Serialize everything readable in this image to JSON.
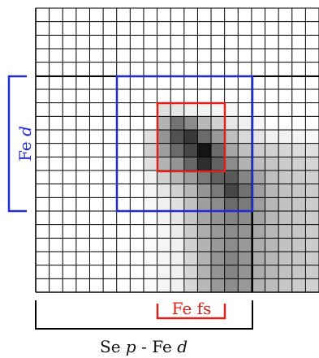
{
  "diagram": {
    "grid": {
      "cols": 21,
      "rows": 21
    },
    "cells": [
      [
        0,
        0,
        0,
        0,
        0,
        0,
        0,
        0,
        0,
        0,
        0,
        0,
        0,
        0,
        0,
        0,
        0,
        0,
        0,
        0,
        0
      ],
      [
        0,
        0,
        0,
        0,
        0,
        0,
        0,
        0,
        0,
        0,
        0,
        0,
        0,
        0,
        0,
        0,
        0,
        0,
        0,
        0,
        0
      ],
      [
        0,
        0,
        0,
        0,
        0,
        0,
        0,
        0,
        0,
        0,
        0,
        0,
        0,
        0,
        0,
        0,
        0,
        0,
        0,
        0,
        0
      ],
      [
        0,
        0,
        0,
        0,
        0,
        0,
        0,
        0,
        0,
        0,
        0,
        0,
        0,
        0,
        0,
        0,
        0,
        0,
        0,
        0,
        0
      ],
      [
        0,
        0,
        0,
        0,
        0,
        0,
        0,
        0,
        0,
        0,
        0,
        0,
        0,
        0,
        0,
        0,
        0,
        0,
        0,
        0,
        0
      ],
      [
        0,
        0,
        0,
        0,
        0,
        0,
        0,
        0,
        0,
        0,
        0,
        0,
        0,
        0,
        0,
        0,
        0,
        0,
        0,
        0,
        0
      ],
      [
        0,
        0,
        0,
        0,
        0,
        0,
        0,
        0,
        0,
        0,
        0,
        0,
        0,
        0,
        0,
        0,
        0,
        0,
        0,
        0,
        0
      ],
      [
        0,
        0,
        0,
        0,
        0,
        0,
        0,
        0,
        0,
        0.12,
        0.1,
        0.06,
        0.05,
        0.04,
        0.03,
        0,
        0,
        0,
        0,
        0,
        0
      ],
      [
        0,
        0,
        0,
        0,
        0,
        0,
        0,
        0,
        0,
        0.3,
        0.55,
        0.45,
        0.28,
        0.18,
        0.1,
        0.06,
        0.04,
        0,
        0,
        0,
        0
      ],
      [
        0,
        0,
        0,
        0,
        0,
        0,
        0,
        0,
        0.12,
        0.42,
        0.68,
        0.78,
        0.58,
        0.4,
        0.25,
        0.15,
        0.1,
        0.06,
        0.05,
        0.04,
        0.03
      ],
      [
        0,
        0,
        0,
        0,
        0,
        0,
        0,
        0,
        0.18,
        0.38,
        0.58,
        0.72,
        0.92,
        0.58,
        0.35,
        0.25,
        0.2,
        0.18,
        0.16,
        0.14,
        0.12
      ],
      [
        0,
        0,
        0,
        0,
        0,
        0,
        0,
        0,
        0.12,
        0.3,
        0.42,
        0.6,
        0.82,
        0.62,
        0.45,
        0.3,
        0.25,
        0.22,
        0.2,
        0.18,
        0.16
      ],
      [
        0,
        0,
        0,
        0,
        0,
        0,
        0,
        0,
        0.06,
        0.18,
        0.28,
        0.38,
        0.52,
        0.62,
        0.65,
        0.48,
        0.35,
        0.25,
        0.22,
        0.2,
        0.18
      ],
      [
        0,
        0,
        0,
        0,
        0,
        0,
        0,
        0,
        0.04,
        0.1,
        0.18,
        0.28,
        0.42,
        0.52,
        0.72,
        0.56,
        0.38,
        0.28,
        0.24,
        0.22,
        0.2
      ],
      [
        0,
        0,
        0,
        0,
        0,
        0,
        0,
        0,
        0.03,
        0.06,
        0.12,
        0.24,
        0.38,
        0.45,
        0.58,
        0.52,
        0.38,
        0.28,
        0.24,
        0.22,
        0.2
      ],
      [
        0,
        0,
        0,
        0,
        0,
        0,
        0,
        0,
        0.02,
        0.05,
        0.1,
        0.22,
        0.35,
        0.42,
        0.48,
        0.45,
        0.36,
        0.28,
        0.24,
        0.22,
        0.2
      ],
      [
        0,
        0,
        0,
        0,
        0,
        0,
        0,
        0,
        0.02,
        0.04,
        0.08,
        0.2,
        0.32,
        0.4,
        0.45,
        0.42,
        0.34,
        0.28,
        0.24,
        0.22,
        0.2
      ],
      [
        0,
        0,
        0,
        0,
        0,
        0,
        0,
        0,
        0.02,
        0.04,
        0.06,
        0.18,
        0.3,
        0.4,
        0.45,
        0.4,
        0.32,
        0.28,
        0.24,
        0.22,
        0.2
      ],
      [
        0,
        0,
        0,
        0,
        0,
        0,
        0,
        0,
        0.02,
        0.04,
        0.06,
        0.16,
        0.3,
        0.42,
        0.48,
        0.42,
        0.32,
        0.28,
        0.24,
        0.22,
        0.2
      ],
      [
        0,
        0,
        0,
        0,
        0,
        0,
        0,
        0,
        0.02,
        0.04,
        0.06,
        0.16,
        0.3,
        0.42,
        0.48,
        0.42,
        0.32,
        0.28,
        0.24,
        0.22,
        0.2
      ],
      [
        0,
        0,
        0,
        0,
        0,
        0,
        0,
        0,
        0.02,
        0.04,
        0.06,
        0.16,
        0.28,
        0.4,
        0.45,
        0.4,
        0.3,
        0.26,
        0.22,
        0.2,
        0.18
      ]
    ],
    "labels": {
      "left_prefix": "Fe",
      "left_var": "d",
      "red_label": "Fe fs",
      "bottom_prefix": "Se",
      "bottom_var_p": "p",
      "bottom_dash": "-",
      "bottom_fe": "Fe",
      "bottom_var_d": "d"
    },
    "colors": {
      "blue": "#1f2bd6",
      "red": "#e0201b",
      "grid": "#000000"
    }
  }
}
